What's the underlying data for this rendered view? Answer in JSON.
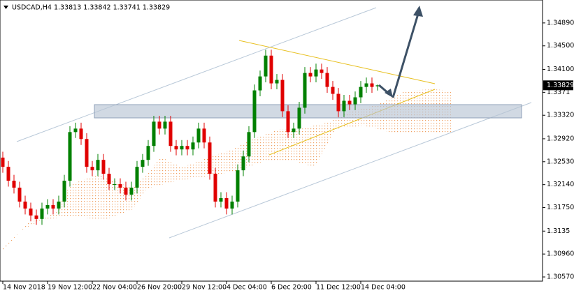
{
  "chart_data": {
    "type": "candlestick",
    "title": "USDCAD,H4 1.33813 1.33842 1.33741 1.33829",
    "categories": [
      "14 Nov 2018",
      null,
      null,
      null,
      null,
      null,
      null,
      null,
      "19 Nov 12:00",
      null,
      null,
      null,
      null,
      null,
      null,
      null,
      "22 Nov 04:00",
      null,
      null,
      null,
      null,
      null,
      null,
      null,
      "26 Nov 20:00",
      null,
      null,
      null,
      null,
      null,
      null,
      null,
      "29 Nov 12:00",
      null,
      null,
      null,
      null,
      null,
      null,
      null,
      "4 Dec 04:00",
      null,
      null,
      null,
      null,
      null,
      null,
      null,
      "6 Dec 20:00",
      null,
      null,
      null,
      null,
      null,
      null,
      null,
      "11 Dec 12:00",
      null,
      null,
      null,
      null,
      null,
      null,
      null,
      "14 Dec 04:00",
      null,
      null,
      null
    ],
    "open": [
      1.326,
      1.32443,
      1.32207,
      1.32089,
      1.31852,
      1.31734,
      1.31616,
      1.31557,
      1.31734,
      1.31793,
      1.31734,
      1.31852,
      1.32207,
      1.33034,
      1.33093,
      1.32916,
      1.32443,
      1.32384,
      1.32561,
      1.32325,
      1.32148,
      1.32148,
      1.32089,
      1.3197,
      1.32089,
      1.32443,
      1.32561,
      1.32798,
      1.33211,
      1.33093,
      1.33211,
      1.32798,
      1.32739,
      1.32798,
      1.32739,
      1.32857,
      1.33093,
      1.32857,
      1.32325,
      1.31852,
      1.31911,
      1.31734,
      1.31852,
      1.32384,
      1.3262,
      1.33034,
      1.33743,
      1.3398,
      1.34334,
      1.33862,
      1.33921,
      1.33389,
      1.33034,
      1.33093,
      1.33448,
      1.34039,
      1.3398,
      1.34098,
      1.34039,
      1.33802,
      1.33684,
      1.33389,
      1.33566,
      1.33507,
      1.33625,
      1.33802,
      1.33862,
      1.33813
    ],
    "high": [
      1.327,
      1.32543,
      1.32307,
      1.32189,
      1.31952,
      1.31834,
      1.31716,
      1.31834,
      1.31893,
      1.31893,
      1.31952,
      1.32307,
      1.33134,
      1.33193,
      1.33193,
      1.33016,
      1.32543,
      1.32661,
      1.32661,
      1.32425,
      1.32248,
      1.32248,
      1.32189,
      1.32189,
      1.32543,
      1.32661,
      1.32898,
      1.33311,
      1.33311,
      1.33311,
      1.33311,
      1.32898,
      1.32898,
      1.32898,
      1.32957,
      1.33193,
      1.33193,
      1.32957,
      1.32425,
      1.32011,
      1.32011,
      1.31952,
      1.32484,
      1.3272,
      1.33134,
      1.33843,
      1.3408,
      1.34434,
      1.34434,
      1.34021,
      1.34021,
      1.33489,
      1.33193,
      1.33548,
      1.34139,
      1.34139,
      1.34198,
      1.34198,
      1.34139,
      1.33902,
      1.33784,
      1.33666,
      1.33666,
      1.33725,
      1.33902,
      1.33962,
      1.33962,
      1.33842
    ],
    "low": [
      1.32343,
      1.32107,
      1.31989,
      1.31752,
      1.31634,
      1.31516,
      1.31457,
      1.31457,
      1.31634,
      1.31634,
      1.31634,
      1.31752,
      1.32107,
      1.32934,
      1.32816,
      1.32343,
      1.32284,
      1.32284,
      1.32225,
      1.32048,
      1.32048,
      1.31989,
      1.3187,
      1.3187,
      1.31989,
      1.32343,
      1.32461,
      1.32698,
      1.32993,
      1.32993,
      1.32698,
      1.32639,
      1.32639,
      1.32639,
      1.32639,
      1.32757,
      1.32757,
      1.32225,
      1.31752,
      1.31752,
      1.31634,
      1.31634,
      1.31752,
      1.32284,
      1.3252,
      1.32934,
      1.33643,
      1.3388,
      1.33762,
      1.33762,
      1.33289,
      1.32934,
      1.32934,
      1.32993,
      1.33348,
      1.3388,
      1.3388,
      1.33939,
      1.33702,
      1.33584,
      1.33289,
      1.33289,
      1.33407,
      1.33407,
      1.33525,
      1.33702,
      1.33702,
      1.33741
    ],
    "close": [
      1.32443,
      1.32207,
      1.32089,
      1.31852,
      1.31734,
      1.31616,
      1.31557,
      1.31734,
      1.31793,
      1.31734,
      1.31852,
      1.32207,
      1.33034,
      1.33093,
      1.32916,
      1.32443,
      1.32384,
      1.32561,
      1.32325,
      1.32148,
      1.32148,
      1.32089,
      1.3197,
      1.32089,
      1.32443,
      1.32561,
      1.32798,
      1.33211,
      1.33093,
      1.33211,
      1.32798,
      1.32739,
      1.32798,
      1.32739,
      1.32857,
      1.33093,
      1.32857,
      1.32325,
      1.31852,
      1.31911,
      1.31734,
      1.31852,
      1.32384,
      1.3262,
      1.33034,
      1.33743,
      1.3398,
      1.34334,
      1.33862,
      1.33921,
      1.33389,
      1.33034,
      1.33093,
      1.33448,
      1.34039,
      1.3398,
      1.34098,
      1.34039,
      1.33802,
      1.33684,
      1.33389,
      1.33566,
      1.33507,
      1.33625,
      1.33802,
      1.33862,
      1.33802,
      1.33829
    ],
    "up_color": "#008000",
    "down_color": "#e00000",
    "last_price": 1.33829,
    "ylim": [
      1.30499,
      1.3528
    ],
    "yticks": [
      {
        "value": 1.3489,
        "label": "1.34890"
      },
      {
        "value": 1.345,
        "label": "1.34500"
      },
      {
        "value": 1.341,
        "label": "1.34100"
      },
      1.3371,
      {
        "value": 1.3332,
        "label": "1.33320"
      },
      {
        "value": 1.3292,
        "label": "1.32920"
      },
      {
        "value": 1.3253,
        "label": "1.32530"
      },
      {
        "value": 1.3214,
        "label": "1.32140"
      },
      {
        "value": 1.3175,
        "label": "1.31750"
      },
      1.3135,
      {
        "value": 1.3096,
        "label": "1.30960"
      },
      {
        "value": 1.3057,
        "label": "1.30570"
      }
    ]
  }
}
